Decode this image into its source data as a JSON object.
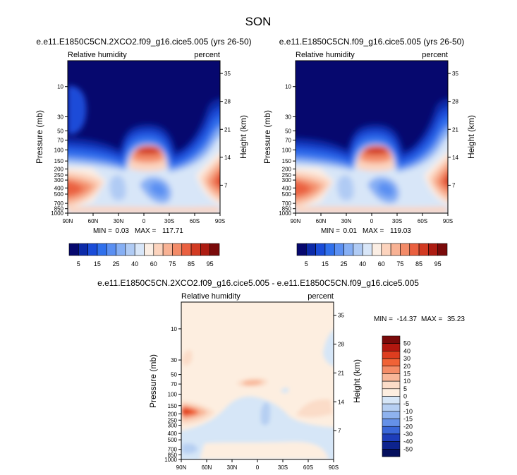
{
  "chart_data": {
    "type": "heatmap",
    "title": "SON",
    "panels": [
      {
        "id": "top-left",
        "title": "e.e11.E1850C5CN.2XCO2.f09_g16.cice5.005 (yrs 26-50)",
        "variable": "Relative humidity",
        "units": "percent",
        "ylabel": "Pressure (mb)",
        "ylabel_right": "Height (km)",
        "x_ticks": [
          "90N",
          "60N",
          "30N",
          "0",
          "30S",
          "60S",
          "90S"
        ],
        "y_ticks": [
          "10",
          "30",
          "50",
          "70",
          "100",
          "150",
          "200",
          "250",
          "300",
          "400",
          "500",
          "700",
          "850",
          "1000"
        ],
        "y_right_ticks": [
          "35",
          "28",
          "21",
          "14",
          "7"
        ],
        "min_label": "MIN =",
        "min": "0.03",
        "max_label": "MAX =",
        "max": "117.71"
      },
      {
        "id": "top-right",
        "title": "e.e11.E1850C5CN.f09_g16.cice5.005 (yrs 26-50)",
        "variable": "Relative humidity",
        "units": "percent",
        "ylabel": "Pressure (mb)",
        "ylabel_right": "Height (km)",
        "x_ticks": [
          "90N",
          "60N",
          "30N",
          "0",
          "30S",
          "60S",
          "90S"
        ],
        "y_ticks": [
          "10",
          "30",
          "50",
          "70",
          "100",
          "150",
          "200",
          "250",
          "300",
          "400",
          "500",
          "700",
          "850",
          "1000"
        ],
        "y_right_ticks": [
          "35",
          "28",
          "21",
          "14",
          "7"
        ],
        "min_label": "MIN =",
        "min": "0.01",
        "max_label": "MAX =",
        "max": "119.03"
      },
      {
        "id": "bottom",
        "title": "e.e11.E1850C5CN.2XCO2.f09_g16.cice5.005 - e.e11.E1850C5CN.f09_g16.cice5.005",
        "variable": "Relative humidity",
        "units": "percent",
        "ylabel": "Pressure (mb)",
        "ylabel_right": "Height (km)",
        "x_ticks": [
          "90N",
          "60N",
          "30N",
          "0",
          "30S",
          "60S",
          "90S"
        ],
        "y_ticks": [
          "10",
          "30",
          "50",
          "70",
          "100",
          "150",
          "200",
          "250",
          "300",
          "400",
          "500",
          "700",
          "850",
          "1000"
        ],
        "y_right_ticks": [
          "35",
          "28",
          "21",
          "14",
          "7"
        ],
        "min_label": "MIN =",
        "min": "-14.37",
        "max_label": "MAX =",
        "max": "35.23"
      }
    ],
    "colorbars": {
      "top_labels": [
        "5",
        "15",
        "25",
        "40",
        "60",
        "75",
        "85",
        "95"
      ],
      "top_colors": [
        "#06086e",
        "#0c2aa8",
        "#1a4cd8",
        "#3070ec",
        "#5a8ff2",
        "#86aff4",
        "#b0cbf4",
        "#d8e6f8",
        "#fbeee4",
        "#fcd3bd",
        "#f8b294",
        "#f38b68",
        "#ea6040",
        "#d23a22",
        "#ad1c12",
        "#7a0a0a"
      ],
      "bottom_labels": [
        "50",
        "40",
        "30",
        "20",
        "15",
        "10",
        "5",
        "0",
        "-5",
        "-10",
        "-15",
        "-20",
        "-30",
        "-40",
        "-50"
      ],
      "bottom_colors": [
        "#7a0a0a",
        "#b3170f",
        "#dd3d1f",
        "#f06236",
        "#f48c67",
        "#f8b698",
        "#fbdcc8",
        "#fdeee0",
        "#d6e6f7",
        "#b6cff2",
        "#8eb2ee",
        "#6591e8",
        "#3a67d8",
        "#1d3dba",
        "#0d238e",
        "#05105e"
      ]
    }
  }
}
